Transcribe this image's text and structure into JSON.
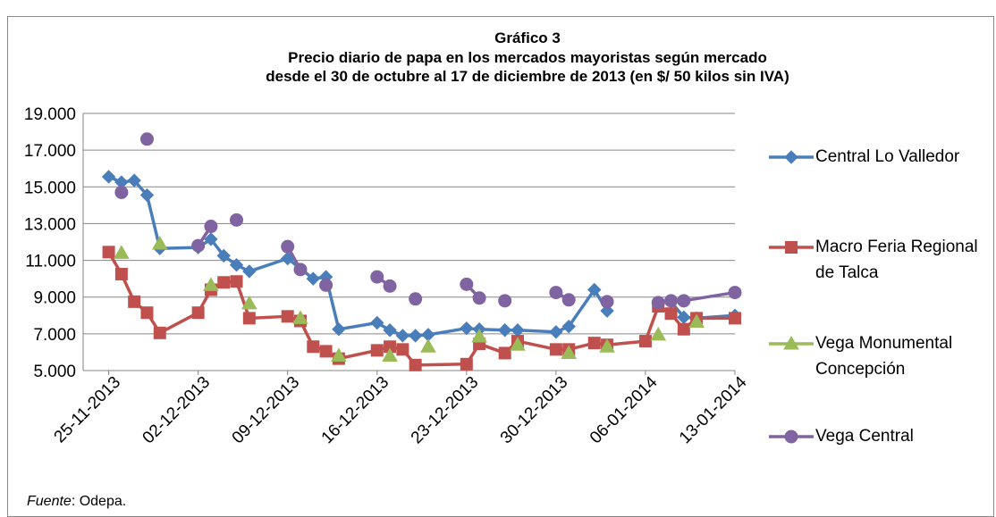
{
  "chart_data": {
    "type": "line",
    "title": "Gráfico 3",
    "subtitle": [
      "Precio diario de papa en los mercados mayoristas según mercado",
      "desde el 30 de octubre al 17 de diciembre de 2013 (en $/ 50 kilos sin IVA)"
    ],
    "source": {
      "label": "Fuente",
      "text": ": Odepa."
    },
    "xlim": [
      "23-11-2013",
      "13-01-2014"
    ],
    "xticks": [
      "25-11-2013",
      "02-12-2013",
      "09-12-2013",
      "16-12-2013",
      "23-12-2013",
      "30-12-2013",
      "06-01-2014",
      "13-01-2014"
    ],
    "ylim": [
      5000,
      19000
    ],
    "yticks": [
      {
        "value": 5000,
        "label": "5.000"
      },
      {
        "value": 7000,
        "label": "7.000"
      },
      {
        "value": 9000,
        "label": "9.000"
      },
      {
        "value": 11000,
        "label": "11.000"
      },
      {
        "value": 13000,
        "label": "13.000"
      },
      {
        "value": 15000,
        "label": "15.000"
      },
      {
        "value": 17000,
        "label": "17.000"
      },
      {
        "value": 19000,
        "label": "19.000"
      }
    ],
    "grid": true,
    "legend": "right",
    "series": [
      {
        "name": "Central Lo Valledor",
        "color": "#4a7ebb",
        "marker": "diamond",
        "x": [
          "25-11-2013",
          "26-11-2013",
          "27-11-2013",
          "28-11-2013",
          "29-11-2013",
          "02-12-2013",
          "03-12-2013",
          "04-12-2013",
          "05-12-2013",
          "06-12-2013",
          "09-12-2013",
          "11-12-2013",
          "12-12-2013",
          "13-12-2013",
          "16-12-2013",
          "17-12-2013",
          "18-12-2013",
          "19-12-2013",
          "20-12-2013",
          "23-12-2013",
          "24-12-2013",
          "26-12-2013",
          "27-12-2013",
          "30-12-2013",
          "31-12-2013",
          "02-01-2014",
          "03-01-2014",
          "06-01-2014",
          "08-01-2014",
          "09-01-2014",
          "10-01-2014",
          "13-01-2014"
        ],
        "values": [
          15550,
          15250,
          15350,
          14550,
          11650,
          11700,
          12150,
          11250,
          10750,
          10400,
          11100,
          10000,
          10100,
          7250,
          7600,
          7200,
          6900,
          6900,
          6950,
          7300,
          7250,
          7200,
          7200,
          7100,
          7400,
          9400,
          8250,
          null,
          8750,
          7900,
          7850,
          8000
        ]
      },
      {
        "name": "Macro Feria Regional de Talca",
        "color": "#c0504d",
        "marker": "square",
        "x": [
          "25-11-2013",
          "26-11-2013",
          "27-11-2013",
          "28-11-2013",
          "29-11-2013",
          "02-12-2013",
          "03-12-2013",
          "04-12-2013",
          "05-12-2013",
          "06-12-2013",
          "09-12-2013",
          "10-12-2013",
          "11-12-2013",
          "12-12-2013",
          "13-12-2013",
          "16-12-2013",
          "17-12-2013",
          "18-12-2013",
          "19-12-2013",
          "23-12-2013",
          "24-12-2013",
          "26-12-2013",
          "27-12-2013",
          "30-12-2013",
          "31-12-2013",
          "02-01-2014",
          "03-01-2014",
          "06-01-2014",
          "07-01-2014",
          "08-01-2014",
          "09-01-2014",
          "10-01-2014",
          "13-01-2014"
        ],
        "values": [
          11450,
          10250,
          8750,
          8150,
          7050,
          8150,
          9400,
          9800,
          9850,
          7850,
          7950,
          7700,
          6300,
          6050,
          5650,
          6100,
          6300,
          6150,
          5300,
          5350,
          6450,
          5950,
          6600,
          6150,
          6150,
          6500,
          6400,
          6600,
          8500,
          8100,
          7250,
          7850,
          7850
        ]
      },
      {
        "name": "Vega Monumental Concepción",
        "color": "#9bbb59",
        "marker": "triangle",
        "x": [
          "26-11-2013",
          "27-11-2013",
          "29-11-2013",
          "30-11-2013",
          "03-12-2013",
          "04-12-2013",
          "06-12-2013",
          "07-12-2013",
          "10-12-2013",
          "11-12-2013",
          "13-12-2013",
          "14-12-2013",
          "17-12-2013",
          "18-12-2013",
          "20-12-2013",
          "21-12-2013",
          "24-12-2013",
          "25-12-2013",
          "27-12-2013",
          "28-12-2013",
          "31-12-2013",
          "01-01-2014",
          "03-01-2014",
          "04-01-2014",
          "07-01-2014",
          "08-01-2014",
          "10-01-2014"
        ],
        "values": [
          11400,
          null,
          11900,
          null,
          9650,
          null,
          8650,
          null,
          7850,
          null,
          5800,
          null,
          5800,
          null,
          6300,
          null,
          6850,
          null,
          6400,
          null,
          5950,
          null,
          6300,
          null,
          6950,
          null,
          7650
        ]
      },
      {
        "name": "Vega Central",
        "color": "#8064a2",
        "marker": "circle",
        "x": [
          "26-11-2013",
          "27-11-2013",
          "28-11-2013",
          "29-11-2013",
          "02-12-2013",
          "03-12-2013",
          "04-12-2013",
          "05-12-2013",
          "06-12-2013",
          "09-12-2013",
          "10-12-2013",
          "11-12-2013",
          "12-12-2013",
          "13-12-2013",
          "16-12-2013",
          "17-12-2013",
          "18-12-2013",
          "19-12-2013",
          "20-12-2013",
          "23-12-2013",
          "24-12-2013",
          "25-12-2013",
          "26-12-2013",
          "27-12-2013",
          "30-12-2013",
          "31-12-2013",
          "01-01-2014",
          "03-01-2014",
          "04-01-2014",
          "07-01-2014",
          "08-01-2014",
          "09-01-2014",
          "13-01-2014"
        ],
        "values": [
          14700,
          null,
          17600,
          null,
          11800,
          12850,
          null,
          13200,
          null,
          11750,
          10500,
          null,
          9650,
          null,
          10100,
          9600,
          null,
          8900,
          null,
          9700,
          8950,
          null,
          8800,
          null,
          9250,
          8850,
          null,
          8750,
          null,
          8700,
          8800,
          8800,
          9250
        ]
      }
    ]
  }
}
